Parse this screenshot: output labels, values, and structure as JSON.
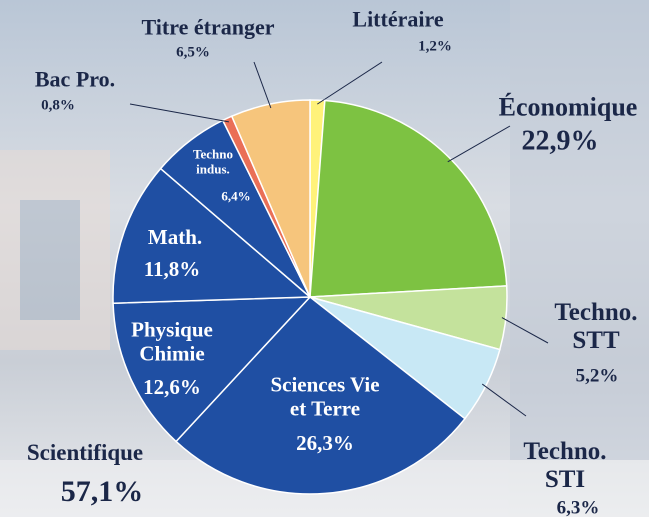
{
  "chart_data": {
    "type": "pie",
    "categories": [
      "Littéraire",
      "Économique",
      "Techno.\nSTT",
      "Techno.\nSTI",
      "Sciences Vie\net Terre",
      "Physique\nChimie",
      "Math.",
      "Techno\nindus.",
      "Bac Pro.",
      "Titre étranger"
    ],
    "values": [
      1.2,
      22.9,
      5.2,
      6.3,
      26.3,
      12.6,
      11.8,
      6.4,
      0.8,
      6.5
    ],
    "value_labels": [
      "1,2%",
      "22,9%",
      "5,2%",
      "6,3%",
      "26,3%",
      "12,6%",
      "11,8%",
      "6,4%",
      "0,8%",
      "6,5%"
    ],
    "colors": [
      "#fff27a",
      "#7dc242",
      "#c4e29c",
      "#c8e8f5",
      "#1f4fa3",
      "#1f4fa3",
      "#1f4fa3",
      "#1f4fa3",
      "#ea6f57",
      "#f6c57c"
    ],
    "group": {
      "name": "Scientifique",
      "label": "57,1%"
    }
  }
}
